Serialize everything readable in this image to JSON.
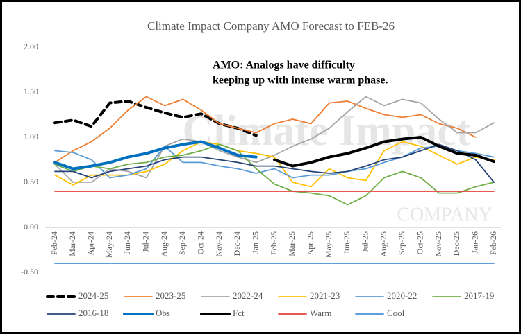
{
  "chart_data": {
    "type": "line",
    "title": "Climate Impact Company AMO Forecast to FEB-26",
    "annotation": [
      "AMO: Analogs have difficulty",
      "keeping up with intense warm phase."
    ],
    "watermark": [
      "Climate Impact",
      "COMPANY"
    ],
    "categories": [
      "Feb-24",
      "Mar-24",
      "Apr-24",
      "May-24",
      "Jun-24",
      "Jul-24",
      "Aug-24",
      "Sep-24",
      "Oct-24",
      "Nov-24",
      "Dec-24",
      "Jan-25",
      "Feb-25",
      "Mar-25",
      "Apr-25",
      "May-25",
      "Jun-25",
      "Jul-25",
      "Aug-25",
      "Sep-25",
      "Oct-25",
      "Nov-25",
      "Dec-25",
      "Jan-26",
      "Feb-26"
    ],
    "ylim": [
      -0.5,
      2
    ],
    "yticks": [
      {
        "value": 2,
        "label": "2.00"
      },
      {
        "value": 1.5,
        "label": "1.50"
      },
      {
        "value": 1,
        "label": "1.00"
      },
      {
        "value": 0.5,
        "label": "0.50"
      },
      {
        "value": 0,
        "label": "0.00"
      },
      {
        "value": -0.5,
        "label": "-0.50"
      }
    ],
    "grid": false,
    "legend": "bottom",
    "series": [
      {
        "name": "2024-25",
        "color": "#000000",
        "style": "dashed",
        "weight": "thick",
        "values": [
          1.16,
          1.19,
          1.12,
          1.38,
          1.4,
          1.33,
          1.27,
          1.22,
          1.26,
          1.15,
          1.1,
          1.02,
          null,
          null,
          null,
          null,
          null,
          null,
          null,
          null,
          null,
          null,
          null,
          null,
          null
        ]
      },
      {
        "name": "2023-25",
        "color": "#ed7d31",
        "style": "solid",
        "weight": "thin",
        "values": [
          0.72,
          0.85,
          0.95,
          1.1,
          1.3,
          1.45,
          1.35,
          1.42,
          1.3,
          1.15,
          1.1,
          1.05,
          1.15,
          1.2,
          1.15,
          1.38,
          1.4,
          1.32,
          1.25,
          1.22,
          1.25,
          1.15,
          1.1,
          1.0,
          null
        ]
      },
      {
        "name": "2022-24",
        "color": "#a5a5a5",
        "style": "solid",
        "weight": "thin",
        "values": [
          0.7,
          0.5,
          0.5,
          0.65,
          0.62,
          0.55,
          0.9,
          0.98,
          0.95,
          0.85,
          0.78,
          0.72,
          0.8,
          0.9,
          0.98,
          1.1,
          1.28,
          1.45,
          1.35,
          1.42,
          1.38,
          1.2,
          1.05,
          1.05,
          1.16
        ]
      },
      {
        "name": "2021-23",
        "color": "#ffc000",
        "style": "solid",
        "weight": "thin",
        "values": [
          0.58,
          0.47,
          0.58,
          0.58,
          0.58,
          0.62,
          0.7,
          0.85,
          0.95,
          0.92,
          0.85,
          0.82,
          0.78,
          0.5,
          0.45,
          0.65,
          0.55,
          0.52,
          0.85,
          0.95,
          0.9,
          0.8,
          0.7,
          0.78,
          0.75
        ]
      },
      {
        "name": "2020-22",
        "color": "#5b9bd5",
        "style": "solid",
        "weight": "thin",
        "values": [
          0.85,
          0.83,
          0.75,
          0.55,
          0.58,
          0.65,
          0.9,
          0.72,
          0.72,
          0.68,
          0.65,
          0.6,
          0.65,
          0.55,
          0.58,
          0.58,
          0.62,
          0.65,
          0.72,
          0.78,
          0.88,
          0.9,
          0.85,
          0.82,
          0.78
        ]
      },
      {
        "name": "2017-19",
        "color": "#70ad47",
        "style": "solid",
        "weight": "thin",
        "values": [
          0.7,
          0.62,
          0.68,
          0.65,
          0.7,
          0.72,
          0.78,
          0.8,
          0.85,
          0.92,
          0.85,
          0.65,
          0.48,
          0.4,
          0.38,
          0.35,
          0.25,
          0.35,
          0.55,
          0.62,
          0.55,
          0.38,
          0.38,
          0.45,
          0.5
        ]
      },
      {
        "name": "2016-18",
        "color": "#264478",
        "style": "solid",
        "weight": "thin",
        "values": [
          0.62,
          0.62,
          0.55,
          0.62,
          0.65,
          0.68,
          0.75,
          0.78,
          0.78,
          0.75,
          0.72,
          0.68,
          0.68,
          0.65,
          0.62,
          0.6,
          0.62,
          0.68,
          0.75,
          0.78,
          0.85,
          0.92,
          0.85,
          0.75,
          0.5
        ]
      },
      {
        "name": "Obs",
        "color": "#0070c0",
        "style": "solid",
        "weight": "thick",
        "values": [
          0.72,
          0.65,
          0.68,
          0.72,
          0.78,
          0.82,
          0.88,
          0.92,
          0.95,
          0.88,
          0.8,
          0.78,
          null,
          null,
          null,
          null,
          null,
          null,
          null,
          null,
          null,
          null,
          null,
          null,
          null
        ]
      },
      {
        "name": "Fct",
        "color": "#000000",
        "style": "solid",
        "weight": "thick",
        "values": [
          null,
          null,
          null,
          null,
          null,
          null,
          null,
          null,
          null,
          null,
          null,
          null,
          0.75,
          0.68,
          0.72,
          0.78,
          0.82,
          0.88,
          0.95,
          0.98,
          1.0,
          0.9,
          0.82,
          0.8,
          0.73
        ]
      },
      {
        "name": "Warm",
        "color": "#e8403a",
        "style": "solid",
        "weight": "thin",
        "values": [
          0.4,
          0.4,
          0.4,
          0.4,
          0.4,
          0.4,
          0.4,
          0.4,
          0.4,
          0.4,
          0.4,
          0.4,
          0.4,
          0.4,
          0.4,
          0.4,
          0.4,
          0.4,
          0.4,
          0.4,
          0.4,
          0.4,
          0.4,
          0.4,
          0.4
        ]
      },
      {
        "name": "Cool",
        "color": "#4a90d9",
        "style": "solid",
        "weight": "thin",
        "values": [
          -0.4,
          -0.4,
          -0.4,
          -0.4,
          -0.4,
          -0.4,
          -0.4,
          -0.4,
          -0.4,
          -0.4,
          -0.4,
          -0.4,
          -0.4,
          -0.4,
          -0.4,
          -0.4,
          -0.4,
          -0.4,
          -0.4,
          -0.4,
          -0.4,
          -0.4,
          -0.4,
          -0.4,
          -0.4
        ]
      }
    ]
  }
}
